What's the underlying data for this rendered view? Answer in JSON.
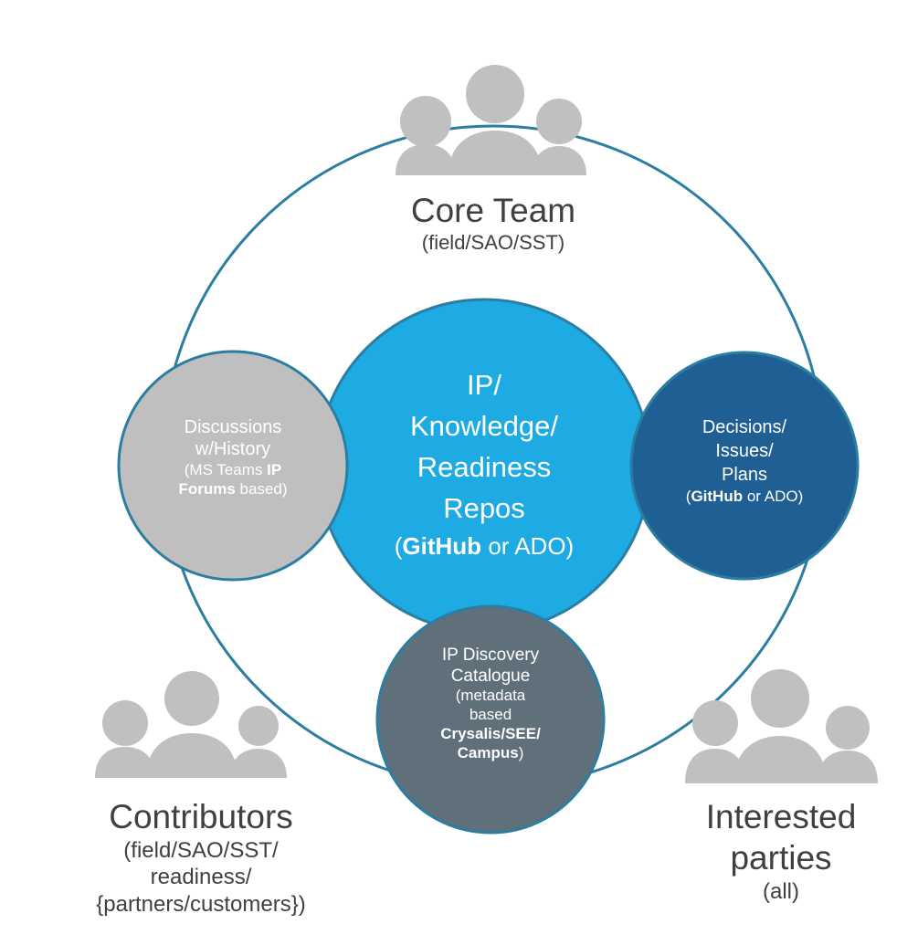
{
  "groups": {
    "core_team": {
      "title": "Core Team",
      "subtitle": "(field/SAO/SST)"
    },
    "contributors": {
      "title": "Contributors",
      "line1": "(field/SAO/SST/",
      "line2": "readiness/",
      "line3": "{partners/customers})"
    },
    "interested": {
      "line1": "Interested",
      "line2": "parties",
      "line3": "(all)"
    }
  },
  "nodes": {
    "repos": {
      "line1": "IP/",
      "line2": "Knowledge/",
      "line3": "Readiness",
      "line4": "Repos",
      "tool_bold": "GitHub",
      "tool_rest": "or ADO)",
      "open_paren": "("
    },
    "discussions": {
      "line1": "Discussions",
      "line2": "w/History",
      "line3_pre": "(MS Teams",
      "line3_bold": "IP",
      "line4_bold": "Forums",
      "line4_rest": "based)"
    },
    "decisions": {
      "line1": "Decisions/",
      "line2": "Issues/",
      "line3": "Plans",
      "tool_bold": "GitHub",
      "tool_rest": "or ADO)",
      "open_paren": "("
    },
    "catalogue": {
      "line1": "IP Discovery",
      "line2": "Catalogue",
      "line3": "(metadata",
      "line4": "based",
      "line5_bold": "Crysalis/SEE/",
      "line6_bold": "Campus",
      "line6_rest": ")"
    }
  },
  "colors": {
    "ring": "#2b7ea1",
    "repos": "#1eaae2",
    "discussions": "#bfbfbf",
    "decisions": "#1f5f93",
    "catalogue": "#5f707b",
    "people": "#c0c0c0"
  }
}
